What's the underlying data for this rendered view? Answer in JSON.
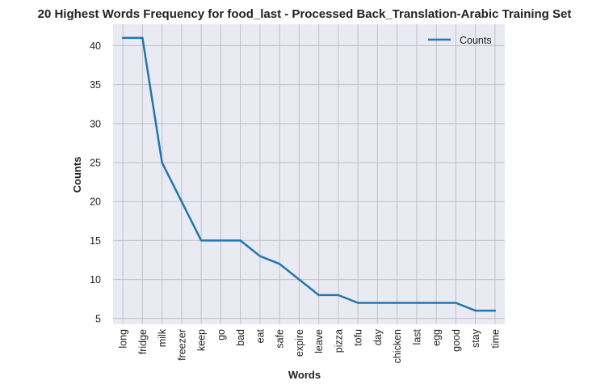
{
  "chart_data": {
    "type": "line",
    "title": "20 Highest Words Frequency for food_last - Processed Back_Translation-Arabic Training Set",
    "xlabel": "Words",
    "ylabel": "Counts",
    "categories": [
      "long",
      "fridge",
      "milk",
      "freezer",
      "keep",
      "go",
      "bad",
      "eat",
      "safe",
      "expire",
      "leave",
      "pizza",
      "tofu",
      "day",
      "chicken",
      "last",
      "egg",
      "good",
      "stay",
      "time"
    ],
    "series": [
      {
        "name": "Counts",
        "values": [
          41,
          41,
          25,
          20,
          15,
          15,
          15,
          13,
          12,
          10,
          8,
          8,
          7,
          7,
          7,
          7,
          7,
          7,
          6,
          6
        ],
        "color": "#1f77b4"
      }
    ],
    "ylim": [
      4.25,
      42.75
    ],
    "yticks": [
      5,
      10,
      15,
      20,
      25,
      30,
      35,
      40
    ],
    "grid": true,
    "legend_position": "top-right",
    "style": {
      "background": "#eaeaf2",
      "grid_color": "#c0c0c8"
    }
  }
}
